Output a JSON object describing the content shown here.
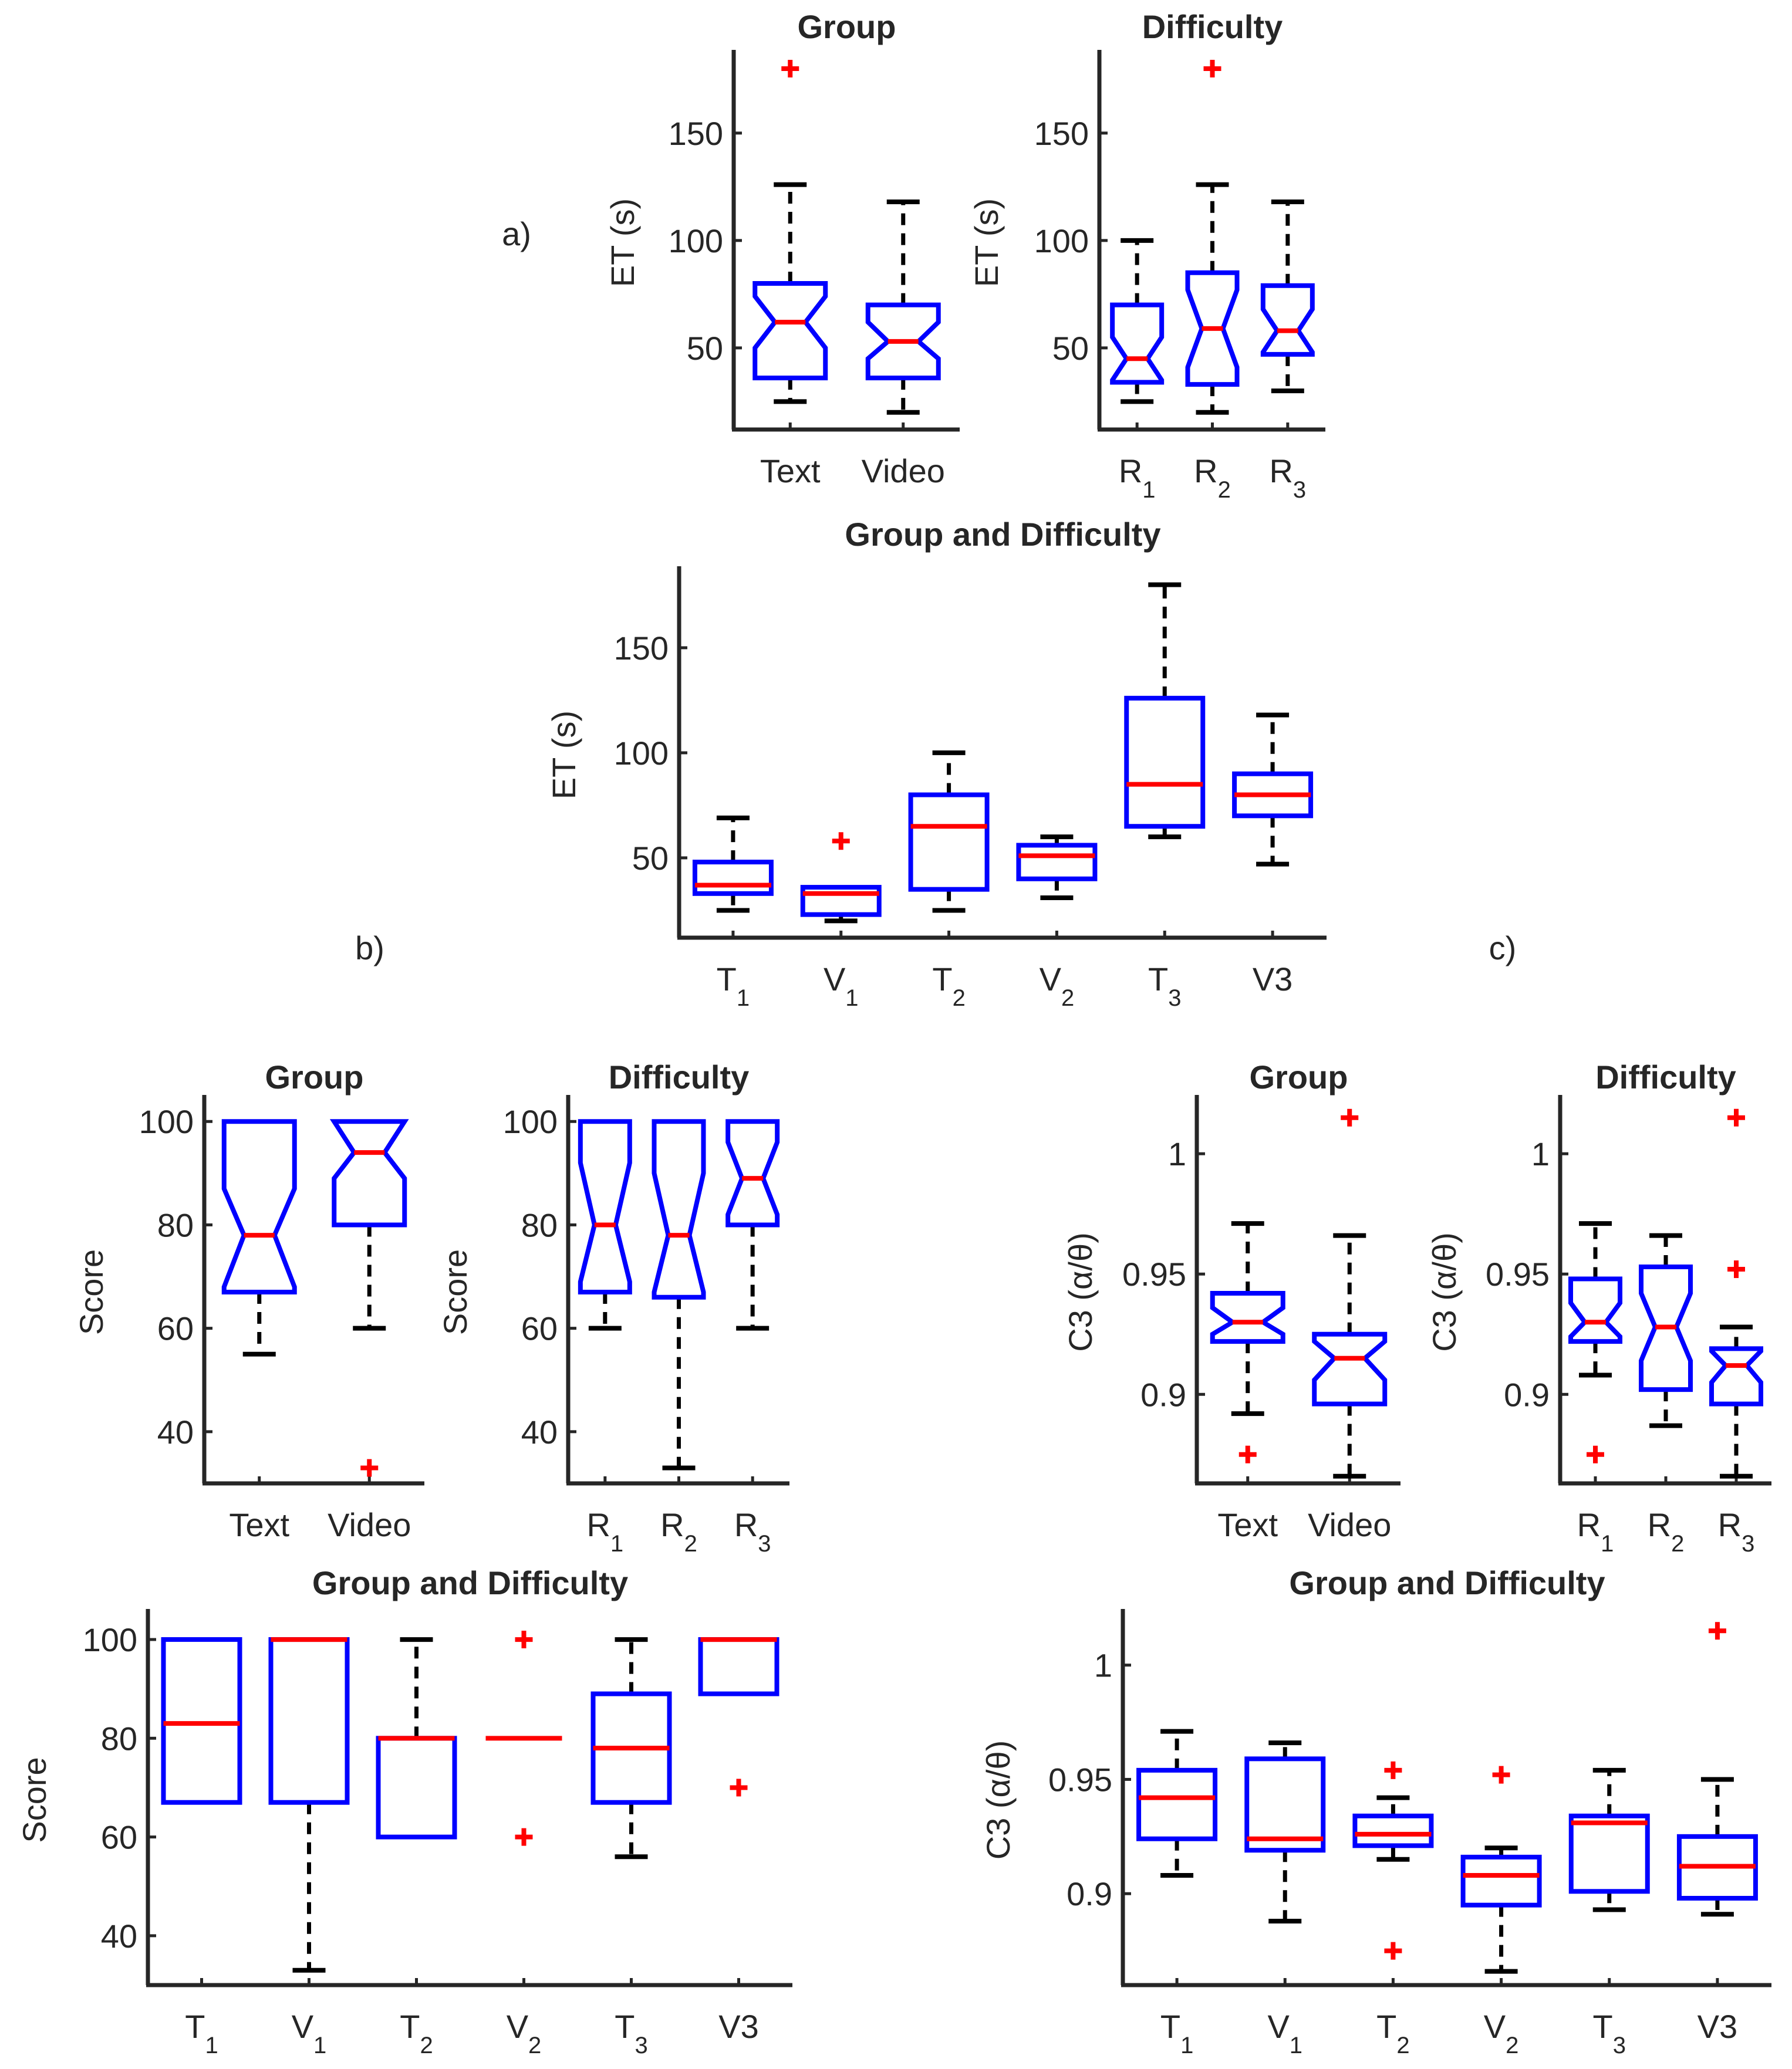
{
  "figure": {
    "panel_labels": [
      "a)",
      "b)",
      "c)"
    ]
  },
  "chart_data": [
    {
      "id": "a1",
      "type": "box",
      "notched": true,
      "title": "Group",
      "ylabel": "ET (s)",
      "ylim": [
        12,
        186
      ],
      "yticks": [
        50,
        100,
        150
      ],
      "categories": [
        {
          "label": "Text"
        },
        {
          "label": "Video"
        }
      ],
      "boxes": [
        {
          "q1": 36,
          "median": 62,
          "q3": 80,
          "whisker_low": 25,
          "whisker_high": 126,
          "notch": [
            50,
            74
          ],
          "outliers": [
            180
          ]
        },
        {
          "q1": 36,
          "median": 53,
          "q3": 70,
          "whisker_low": 20,
          "whisker_high": 118,
          "notch": [
            45,
            62
          ],
          "outliers": []
        }
      ]
    },
    {
      "id": "a2",
      "type": "box",
      "notched": true,
      "title": "Difficulty",
      "ylabel": "ET (s)",
      "ylim": [
        12,
        186
      ],
      "yticks": [
        50,
        100,
        150
      ],
      "categories": [
        {
          "label": "R",
          "sub": "1"
        },
        {
          "label": "R",
          "sub": "2"
        },
        {
          "label": "R",
          "sub": "3"
        }
      ],
      "boxes": [
        {
          "q1": 34,
          "median": 45,
          "q3": 70,
          "whisker_low": 25,
          "whisker_high": 100,
          "notch": [
            35,
            55
          ],
          "outliers": []
        },
        {
          "q1": 33,
          "median": 59,
          "q3": 85,
          "whisker_low": 20,
          "whisker_high": 126,
          "notch": [
            41,
            77
          ],
          "outliers": [
            180
          ]
        },
        {
          "q1": 47,
          "median": 58,
          "q3": 79,
          "whisker_low": 30,
          "whisker_high": 118,
          "notch": [
            48,
            68
          ],
          "outliers": []
        }
      ]
    },
    {
      "id": "a3",
      "type": "box",
      "notched": false,
      "title": "Group and Difficulty",
      "ylabel": "ET (s)",
      "ylim": [
        12,
        186
      ],
      "yticks": [
        50,
        100,
        150
      ],
      "categories": [
        {
          "label": "T",
          "sub": "1"
        },
        {
          "label": "V",
          "sub": "1"
        },
        {
          "label": "T",
          "sub": "2"
        },
        {
          "label": "V",
          "sub": "2"
        },
        {
          "label": "T",
          "sub": "3"
        },
        {
          "label": "V3"
        }
      ],
      "boxes": [
        {
          "q1": 33,
          "median": 37,
          "q3": 48,
          "whisker_low": 25,
          "whisker_high": 69,
          "outliers": []
        },
        {
          "q1": 23,
          "median": 33,
          "q3": 36,
          "whisker_low": 20,
          "whisker_high": 36,
          "outliers": [
            58
          ]
        },
        {
          "q1": 35,
          "median": 65,
          "q3": 80,
          "whisker_low": 25,
          "whisker_high": 100,
          "outliers": []
        },
        {
          "q1": 40,
          "median": 51,
          "q3": 56,
          "whisker_low": 31,
          "whisker_high": 60,
          "outliers": []
        },
        {
          "q1": 65,
          "median": 85,
          "q3": 126,
          "whisker_low": 60,
          "whisker_high": 180,
          "outliers": []
        },
        {
          "q1": 70,
          "median": 80,
          "q3": 90,
          "whisker_low": 47,
          "whisker_high": 118,
          "outliers": []
        }
      ]
    },
    {
      "id": "b1",
      "type": "box",
      "notched": true,
      "title": "Group",
      "ylabel": "Score",
      "ylim": [
        30,
        104
      ],
      "yticks": [
        40,
        60,
        80,
        100
      ],
      "categories": [
        {
          "label": "Text"
        },
        {
          "label": "Video"
        }
      ],
      "boxes": [
        {
          "q1": 67,
          "median": 78,
          "q3": 100,
          "whisker_low": 55,
          "whisker_high": 100,
          "notch": [
            68,
            87
          ],
          "outliers": []
        },
        {
          "q1": 80,
          "median": 94,
          "q3": 100,
          "whisker_low": 60,
          "whisker_high": 100,
          "notch": [
            89,
            100
          ],
          "outliers": [
            33
          ]
        }
      ]
    },
    {
      "id": "b2",
      "type": "box",
      "notched": true,
      "title": "Difficulty",
      "ylabel": "Score",
      "ylim": [
        30,
        104
      ],
      "yticks": [
        40,
        60,
        80,
        100
      ],
      "categories": [
        {
          "label": "R",
          "sub": "1"
        },
        {
          "label": "R",
          "sub": "2"
        },
        {
          "label": "R",
          "sub": "3"
        }
      ],
      "boxes": [
        {
          "q1": 67,
          "median": 80,
          "q3": 100,
          "whisker_low": 60,
          "whisker_high": 100,
          "notch": [
            69,
            92
          ],
          "outliers": []
        },
        {
          "q1": 66,
          "median": 78,
          "q3": 100,
          "whisker_low": 33,
          "whisker_high": 100,
          "notch": [
            67,
            90
          ],
          "outliers": []
        },
        {
          "q1": 80,
          "median": 89,
          "q3": 100,
          "whisker_low": 60,
          "whisker_high": 100,
          "notch": [
            82,
            96
          ],
          "outliers": []
        }
      ]
    },
    {
      "id": "b3",
      "type": "box",
      "notched": false,
      "title": "Group and Difficulty",
      "ylabel": "Score",
      "ylim": [
        30,
        105
      ],
      "yticks": [
        40,
        60,
        80,
        100
      ],
      "categories": [
        {
          "label": "T",
          "sub": "1"
        },
        {
          "label": "V",
          "sub": "1"
        },
        {
          "label": "T",
          "sub": "2"
        },
        {
          "label": "V",
          "sub": "2"
        },
        {
          "label": "T",
          "sub": "3"
        },
        {
          "label": "V3"
        }
      ],
      "boxes": [
        {
          "q1": 67,
          "median": 83,
          "q3": 100,
          "whisker_low": 67,
          "whisker_high": 100,
          "outliers": []
        },
        {
          "q1": 67,
          "median": 100,
          "q3": 100,
          "whisker_low": 33,
          "whisker_high": 100,
          "outliers": []
        },
        {
          "q1": 60,
          "median": 80,
          "q3": 80,
          "whisker_low": 60,
          "whisker_high": 100,
          "outliers": []
        },
        {
          "q1": 80,
          "median": 80,
          "q3": 80,
          "whisker_low": 80,
          "whisker_high": 80,
          "outliers": [
            100,
            60
          ]
        },
        {
          "q1": 67,
          "median": 78,
          "q3": 89,
          "whisker_low": 56,
          "whisker_high": 100,
          "outliers": []
        },
        {
          "q1": 89,
          "median": 100,
          "q3": 100,
          "whisker_low": 89,
          "whisker_high": 100,
          "outliers": [
            70
          ]
        }
      ]
    },
    {
      "id": "c1",
      "type": "box",
      "notched": true,
      "title": "Group",
      "ylabel": "C3 (α/θ)",
      "ylim": [
        0.863,
        1.022
      ],
      "yticks": [
        0.9,
        0.95,
        1
      ],
      "ytick_labels": [
        "0.9",
        "0.95",
        "1"
      ],
      "categories": [
        {
          "label": "Text"
        },
        {
          "label": "Video"
        }
      ],
      "boxes": [
        {
          "q1": 0.922,
          "median": 0.93,
          "q3": 0.942,
          "whisker_low": 0.892,
          "whisker_high": 0.971,
          "notch": [
            0.925,
            0.936
          ],
          "outliers": [
            0.875
          ]
        },
        {
          "q1": 0.896,
          "median": 0.915,
          "q3": 0.925,
          "whisker_low": 0.866,
          "whisker_high": 0.966,
          "notch": [
            0.906,
            0.922
          ],
          "outliers": [
            1.015
          ]
        }
      ]
    },
    {
      "id": "c2",
      "type": "box",
      "notched": true,
      "title": "Difficulty",
      "ylabel": "C3 (α/θ)",
      "ylim": [
        0.863,
        1.022
      ],
      "yticks": [
        0.9,
        0.95,
        1
      ],
      "ytick_labels": [
        "0.9",
        "0.95",
        "1"
      ],
      "categories": [
        {
          "label": "R",
          "sub": "1"
        },
        {
          "label": "R",
          "sub": "2"
        },
        {
          "label": "R",
          "sub": "3"
        }
      ],
      "boxes": [
        {
          "q1": 0.922,
          "median": 0.93,
          "q3": 0.948,
          "whisker_low": 0.908,
          "whisker_high": 0.971,
          "notch": [
            0.924,
            0.938
          ],
          "outliers": [
            0.875
          ]
        },
        {
          "q1": 0.902,
          "median": 0.928,
          "q3": 0.953,
          "whisker_low": 0.887,
          "whisker_high": 0.966,
          "notch": [
            0.914,
            0.942
          ],
          "outliers": []
        },
        {
          "q1": 0.896,
          "median": 0.912,
          "q3": 0.919,
          "whisker_low": 0.866,
          "whisker_high": 0.928,
          "notch": [
            0.905,
            0.918
          ],
          "outliers": [
            0.952,
            1.015
          ]
        }
      ]
    },
    {
      "id": "c3",
      "type": "box",
      "notched": false,
      "title": "Group and Difficulty",
      "ylabel": "C3 (α/θ)",
      "ylim": [
        0.86,
        1.022
      ],
      "yticks": [
        0.9,
        0.95,
        1
      ],
      "ytick_labels": [
        "0.9",
        "0.95",
        "1"
      ],
      "categories": [
        {
          "label": "T",
          "sub": "1"
        },
        {
          "label": "V",
          "sub": "1"
        },
        {
          "label": "T",
          "sub": "2"
        },
        {
          "label": "V",
          "sub": "2"
        },
        {
          "label": "T",
          "sub": "3"
        },
        {
          "label": "V3"
        }
      ],
      "boxes": [
        {
          "q1": 0.924,
          "median": 0.942,
          "q3": 0.954,
          "whisker_low": 0.908,
          "whisker_high": 0.971,
          "outliers": []
        },
        {
          "q1": 0.919,
          "median": 0.924,
          "q3": 0.959,
          "whisker_low": 0.888,
          "whisker_high": 0.966,
          "outliers": []
        },
        {
          "q1": 0.921,
          "median": 0.926,
          "q3": 0.934,
          "whisker_low": 0.915,
          "whisker_high": 0.942,
          "outliers": [
            0.954,
            0.875
          ]
        },
        {
          "q1": 0.895,
          "median": 0.908,
          "q3": 0.916,
          "whisker_low": 0.866,
          "whisker_high": 0.92,
          "outliers": [
            0.952
          ]
        },
        {
          "q1": 0.901,
          "median": 0.931,
          "q3": 0.934,
          "whisker_low": 0.893,
          "whisker_high": 0.954,
          "outliers": []
        },
        {
          "q1": 0.898,
          "median": 0.912,
          "q3": 0.925,
          "whisker_low": 0.891,
          "whisker_high": 0.95,
          "outliers": [
            1.015
          ]
        }
      ]
    }
  ]
}
